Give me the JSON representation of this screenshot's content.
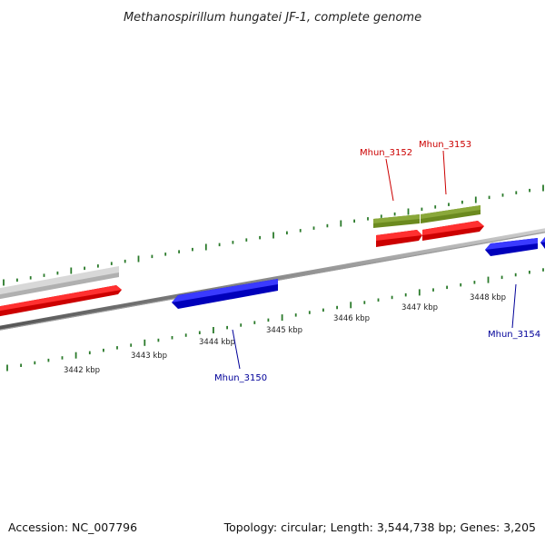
{
  "title": "Methanospirillum hungatei JF-1, complete genome",
  "footer": {
    "accession": "Accession: NC_007796",
    "summary": "Topology: circular; Length: 3,544,738 bp; Genes: 3,205"
  },
  "colors": {
    "forward_gene": "#ee0000",
    "reverse_gene": "#1111dd",
    "feature_green": "#6b8a1f",
    "feature_grey": "#c4c4c4",
    "backbone": "#7a7a7a",
    "tick": "#2a7a2a",
    "label_red": "#cc0000",
    "label_blue": "#000099"
  },
  "ticks": {
    "kbp_labels": [
      "3442 kbp",
      "3443 kbp",
      "3444 kbp",
      "3445 kbp",
      "3446 kbp",
      "3447 kbp",
      "3448 kbp"
    ]
  },
  "gene_labels": [
    {
      "text": "Mhun_3150",
      "strand": "reverse"
    },
    {
      "text": "Mhun_3152",
      "strand": "forward"
    },
    {
      "text": "Mhun_3153",
      "strand": "forward"
    },
    {
      "text": "Mhun_3154",
      "strand": "reverse"
    }
  ]
}
